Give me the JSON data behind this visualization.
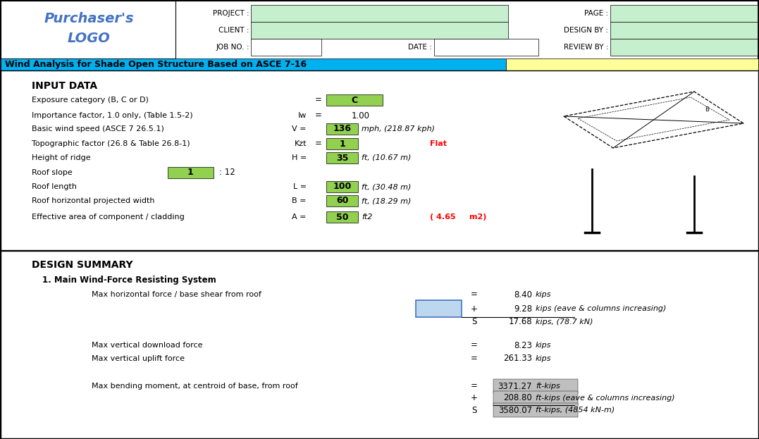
{
  "title": "Wind Analysis for Shade Open Structure Based on ASCE 7-16",
  "logo_line1": "Purchaser's",
  "logo_line2": "LOGO",
  "bg_color": "#ffffff",
  "green_cell": "#92d050",
  "light_green_cell": "#c6efce",
  "blue_cell": "#bdd7ee",
  "gray_cell": "#bfbfbf",
  "title_bar_color": "#00b0f0",
  "title_bar_right_color": "#ffff99",
  "logo_color": "#4472c4",
  "red_text": "#ff0000",
  "input_rows": [
    {
      "label": "Exposure category (B, C or D)",
      "sym": "",
      "eq": "=",
      "val": "C",
      "unit": "",
      "note": "",
      "box": "wide_green"
    },
    {
      "label": "Importance factor, 1.0 only, (Table 1.5-2)",
      "sym": "Iw",
      "eq": "=",
      "val": "1.00",
      "unit": "",
      "note": "",
      "box": "none"
    },
    {
      "label": "Basic wind speed (ASCE 7 26.5.1)",
      "sym": "V =",
      "eq": "",
      "val": "136",
      "unit": "mph, (218.87 kph)",
      "note": "",
      "box": "green"
    },
    {
      "label": "Topographic factor (26.8 & Table 26.8-1)",
      "sym": "Kzt",
      "eq": "=",
      "val": "1",
      "unit": "",
      "note": "Flat",
      "box": "green"
    },
    {
      "label": "Height of ridge",
      "sym": "H =",
      "eq": "",
      "val": "35",
      "unit": "ft, (10.67 m)",
      "note": "",
      "box": "green"
    },
    {
      "label": "Roof slope",
      "sym": "",
      "eq": "",
      "val": "1",
      "unit": ": 12",
      "note": "",
      "box": "slope"
    },
    {
      "label": "Roof length",
      "sym": "L =",
      "eq": "",
      "val": "100",
      "unit": "ft, (30.48 m)",
      "note": "",
      "box": "green"
    },
    {
      "label": "Roof horizontal projected width",
      "sym": "B =",
      "eq": "",
      "val": "60",
      "unit": "ft, (18.29 m)",
      "note": "",
      "box": "green"
    },
    {
      "label": "Effective area of component / cladding",
      "sym": "A =",
      "eq": "",
      "val": "50",
      "unit": "ft2",
      "note": "( 4.65     m2)",
      "box": "green"
    }
  ],
  "design_rows": [
    {
      "label": "Max horizontal force / base shear from roof",
      "eq": "=",
      "val": "8.40",
      "unit": "kips",
      "type": "normal"
    },
    {
      "label": "",
      "eq": "+",
      "val": "9.28",
      "unit": "kips (eave & columns increasing)",
      "type": "blue"
    },
    {
      "label": "",
      "eq": "S",
      "val": "17.68",
      "unit": "kips, (78.7 kN)",
      "type": "sum"
    },
    {
      "label": "Max vertical download force",
      "eq": "=",
      "val": "8.23",
      "unit": "kips",
      "type": "normal"
    },
    {
      "label": "Max vertical uplift force",
      "eq": "=",
      "val": "261.33",
      "unit": "kips",
      "type": "normal"
    },
    {
      "label": "Max bending moment, at centroid of base, from roof",
      "eq": "=",
      "val": "3371.27",
      "unit": "ft-kips",
      "type": "gray"
    },
    {
      "label": "",
      "eq": "+",
      "val": "208.80",
      "unit": "ft-kips (eave & columns increasing)",
      "type": "gray_plus"
    },
    {
      "label": "",
      "eq": "S",
      "val": "3580.07",
      "unit": "ft-kips, (4854 kN-m)",
      "type": "gray_sum"
    }
  ]
}
